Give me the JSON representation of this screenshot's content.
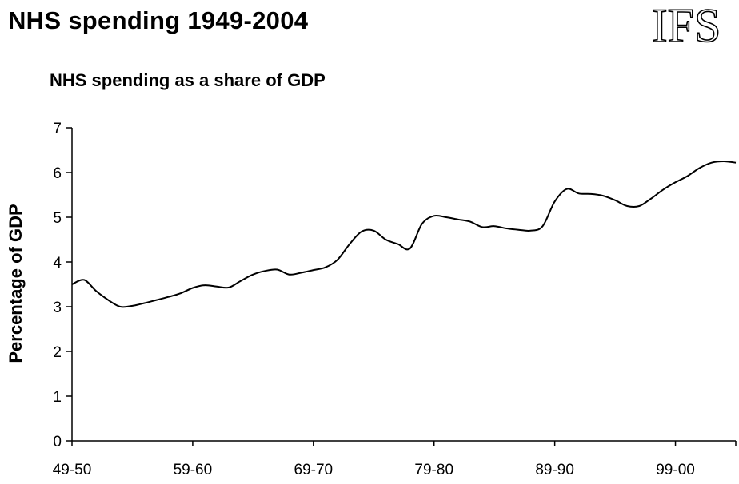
{
  "header": {
    "title": "NHS spending 1949-2004",
    "logo_text": "IFS"
  },
  "chart_data": {
    "type": "line",
    "title": "NHS spending as a share of GDP",
    "xlabel": "",
    "ylabel": "Percentage of GDP",
    "ylim": [
      0,
      7
    ],
    "yticks": [
      0,
      1,
      2,
      3,
      4,
      5,
      6,
      7
    ],
    "xtick_labels": [
      "49-50",
      "59-60",
      "69-70",
      "79-80",
      "89-90",
      "99-00"
    ],
    "x_first_year": 1949,
    "x_last_year": 2004,
    "line_color": "#000000",
    "grid": false,
    "legend": "none",
    "series": [
      {
        "x": [
          1949,
          1950,
          1951,
          1952,
          1953,
          1954,
          1955,
          1956,
          1957,
          1958,
          1959,
          1960,
          1961,
          1962,
          1963,
          1964,
          1965,
          1966,
          1967,
          1968,
          1969,
          1970,
          1971,
          1972,
          1973,
          1974,
          1975,
          1976,
          1977,
          1978,
          1979,
          1980,
          1981,
          1982,
          1983,
          1984,
          1985,
          1986,
          1987,
          1988,
          1989,
          1990,
          1991,
          1992,
          1993,
          1994,
          1995,
          1996,
          1997,
          1998,
          1999,
          2000,
          2001,
          2002,
          2003,
          2004
        ],
        "values": [
          3.5,
          3.6,
          3.35,
          3.15,
          3.0,
          3.02,
          3.08,
          3.15,
          3.22,
          3.3,
          3.42,
          3.48,
          3.45,
          3.43,
          3.58,
          3.72,
          3.8,
          3.83,
          3.72,
          3.76,
          3.82,
          3.88,
          4.05,
          4.4,
          4.68,
          4.7,
          4.5,
          4.4,
          4.3,
          4.85,
          5.03,
          5.0,
          4.95,
          4.9,
          4.78,
          4.8,
          4.75,
          4.72,
          4.7,
          4.8,
          5.35,
          5.63,
          5.53,
          5.52,
          5.48,
          5.38,
          5.25,
          5.25,
          5.42,
          5.62,
          5.78,
          5.92,
          6.1,
          6.22,
          6.25,
          6.22
        ]
      }
    ]
  }
}
